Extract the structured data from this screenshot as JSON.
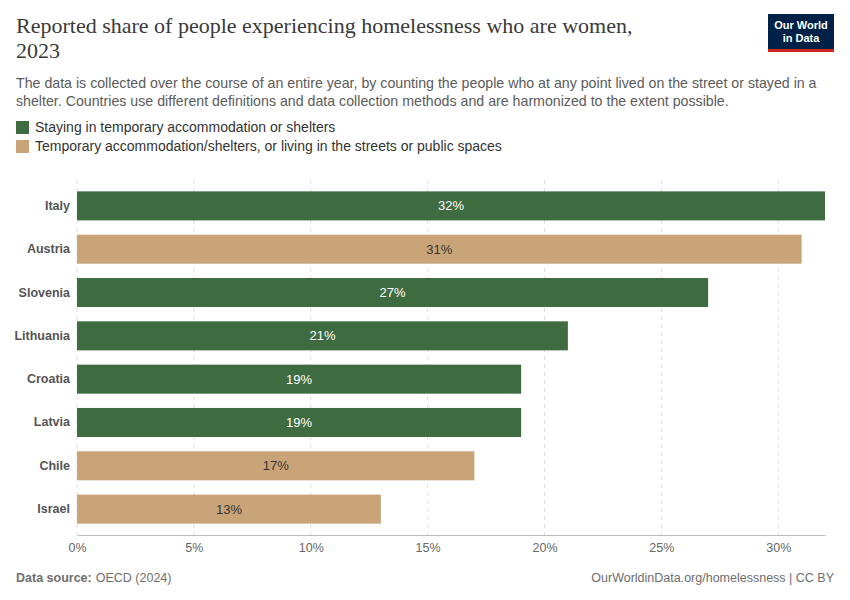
{
  "chart_data": {
    "type": "bar",
    "orientation": "horizontal",
    "title": "Reported share of people experiencing homelessness who are women, 2023",
    "subtitle": "The data is collected over the course of an entire year, by counting the people who at any point lived on the street or stayed in a shelter. Countries use different definitions and data collection methods and are harmonized to the extent possible.",
    "categories": [
      "Italy",
      "Austria",
      "Slovenia",
      "Lithuania",
      "Croatia",
      "Latvia",
      "Chile",
      "Israel"
    ],
    "series": [
      {
        "name": "Staying in temporary accommodation or shelters",
        "color": "#3f6b40",
        "values": [
          32,
          null,
          27,
          21,
          19,
          19,
          null,
          null
        ],
        "value_labels": [
          "32%",
          null,
          "27%",
          "21%",
          "19%",
          "19%",
          null,
          null
        ]
      },
      {
        "name": "Temporary accommodation/shelters, or living in the streets or public spaces",
        "color": "#c9a478",
        "values": [
          null,
          31,
          null,
          null,
          null,
          null,
          17,
          13
        ],
        "value_labels": [
          null,
          "31%",
          null,
          null,
          null,
          null,
          "17%",
          "13%"
        ]
      }
    ],
    "xlim": [
      0,
      32
    ],
    "xticks": [
      {
        "value": 0,
        "label": "0%"
      },
      {
        "value": 5,
        "label": "5%"
      },
      {
        "value": 10,
        "label": "10%"
      },
      {
        "value": 15,
        "label": "15%"
      },
      {
        "value": 20,
        "label": "20%"
      },
      {
        "value": 25,
        "label": "25%"
      },
      {
        "value": 30,
        "label": "30%"
      }
    ],
    "grid": true,
    "legend": "top-left",
    "data_labels": true,
    "source_label": "Data source:",
    "source": "OECD (2024)",
    "credit": "OurWorldinData.org/homelessness | CC BY",
    "logo": [
      "Our World",
      "in Data"
    ]
  }
}
